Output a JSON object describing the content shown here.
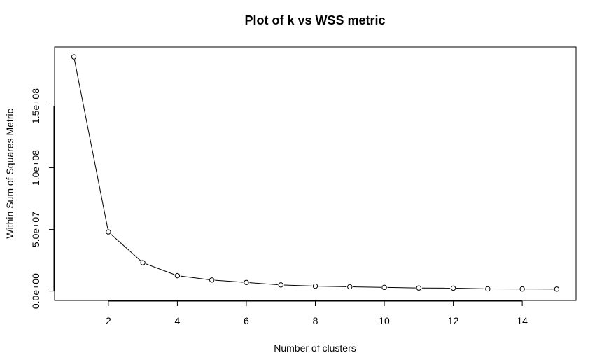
{
  "chart_data": {
    "type": "line",
    "title": "Plot of k vs WSS metric",
    "xlabel": "Number of clusters",
    "ylabel": "Within Sum of Squares Metric",
    "markers": "open-circle",
    "grid": false,
    "xlim": [
      0.44,
      15.56
    ],
    "ylim": [
      -7600000,
      198000000
    ],
    "x_ticks": [
      {
        "value": 2,
        "label": "2"
      },
      {
        "value": 4,
        "label": "4"
      },
      {
        "value": 6,
        "label": "6"
      },
      {
        "value": 8,
        "label": "8"
      },
      {
        "value": 10,
        "label": "10"
      },
      {
        "value": 12,
        "label": "12"
      },
      {
        "value": 14,
        "label": "14"
      }
    ],
    "y_ticks": [
      {
        "value": 0,
        "label": "0.0e+00"
      },
      {
        "value": 50000000,
        "label": "5.0e+07"
      },
      {
        "value": 100000000,
        "label": "1.0e+08"
      },
      {
        "value": 150000000,
        "label": "1.5e+08"
      }
    ],
    "series": [
      {
        "x": [
          1,
          2,
          3,
          4,
          5,
          6,
          7,
          8,
          9,
          10,
          11,
          12,
          13,
          14,
          15
        ],
        "y": [
          190000000,
          48000000,
          23000000,
          12500000,
          9000000,
          7000000,
          5000000,
          4000000,
          3500000,
          3000000,
          2500000,
          2400000,
          1800000,
          1700000,
          1600000
        ]
      }
    ]
  }
}
